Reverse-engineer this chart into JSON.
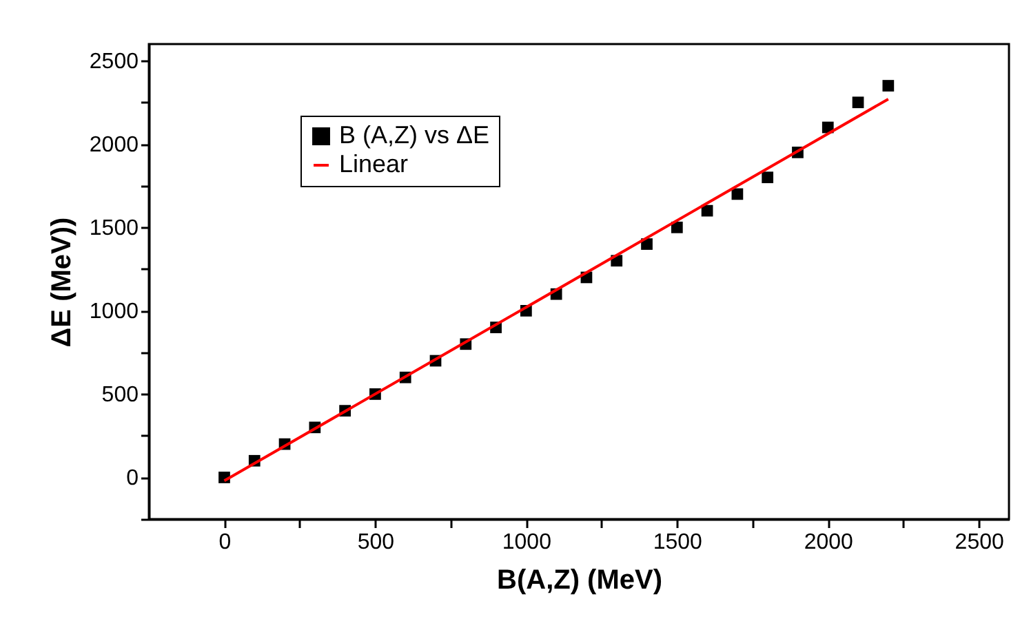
{
  "chart_data": {
    "type": "scatter",
    "xlabel": "B(A,Z) (MeV)",
    "ylabel": "ΔE (MeV))",
    "x": [
      0,
      100,
      200,
      300,
      400,
      500,
      600,
      700,
      800,
      900,
      1000,
      1100,
      1200,
      1300,
      1400,
      1500,
      1600,
      1700,
      1800,
      1900,
      2000,
      2100,
      2200
    ],
    "series": [
      {
        "name": "B (A,Z) vs ΔE",
        "color": "#000000",
        "marker": "square",
        "values": [
          0,
          100,
          200,
          300,
          400,
          500,
          600,
          700,
          800,
          900,
          1000,
          1100,
          1200,
          1300,
          1400,
          1500,
          1600,
          1700,
          1800,
          1950,
          2100,
          2250,
          2350
        ]
      },
      {
        "name": "Linear",
        "color": "#ff0000",
        "type": "line",
        "marker": "none",
        "line_style": "solid",
        "x": [
          0,
          2200
        ],
        "values": [
          -20,
          2270
        ]
      }
    ],
    "xlim": [
      -250,
      2600
    ],
    "ylim": [
      -250,
      2600
    ],
    "xticks": [
      0,
      {
        "value": 250,
        "label": null
      },
      500,
      {
        "value": 750,
        "label": null
      },
      1000,
      {
        "value": 1250,
        "label": null
      },
      1500,
      {
        "value": 1750,
        "label": null
      },
      2000,
      {
        "value": 2250,
        "label": null
      },
      2500
    ],
    "yticks": [
      {
        "value": -250,
        "label": null
      },
      0,
      {
        "value": 250,
        "label": null
      },
      500,
      {
        "value": 750,
        "label": null
      },
      1000,
      {
        "value": 1250,
        "label": null
      },
      1500,
      {
        "value": 1750,
        "label": null
      },
      2000,
      {
        "value": 2250,
        "label": null
      },
      2500
    ],
    "grid": false,
    "legend": "top left"
  }
}
